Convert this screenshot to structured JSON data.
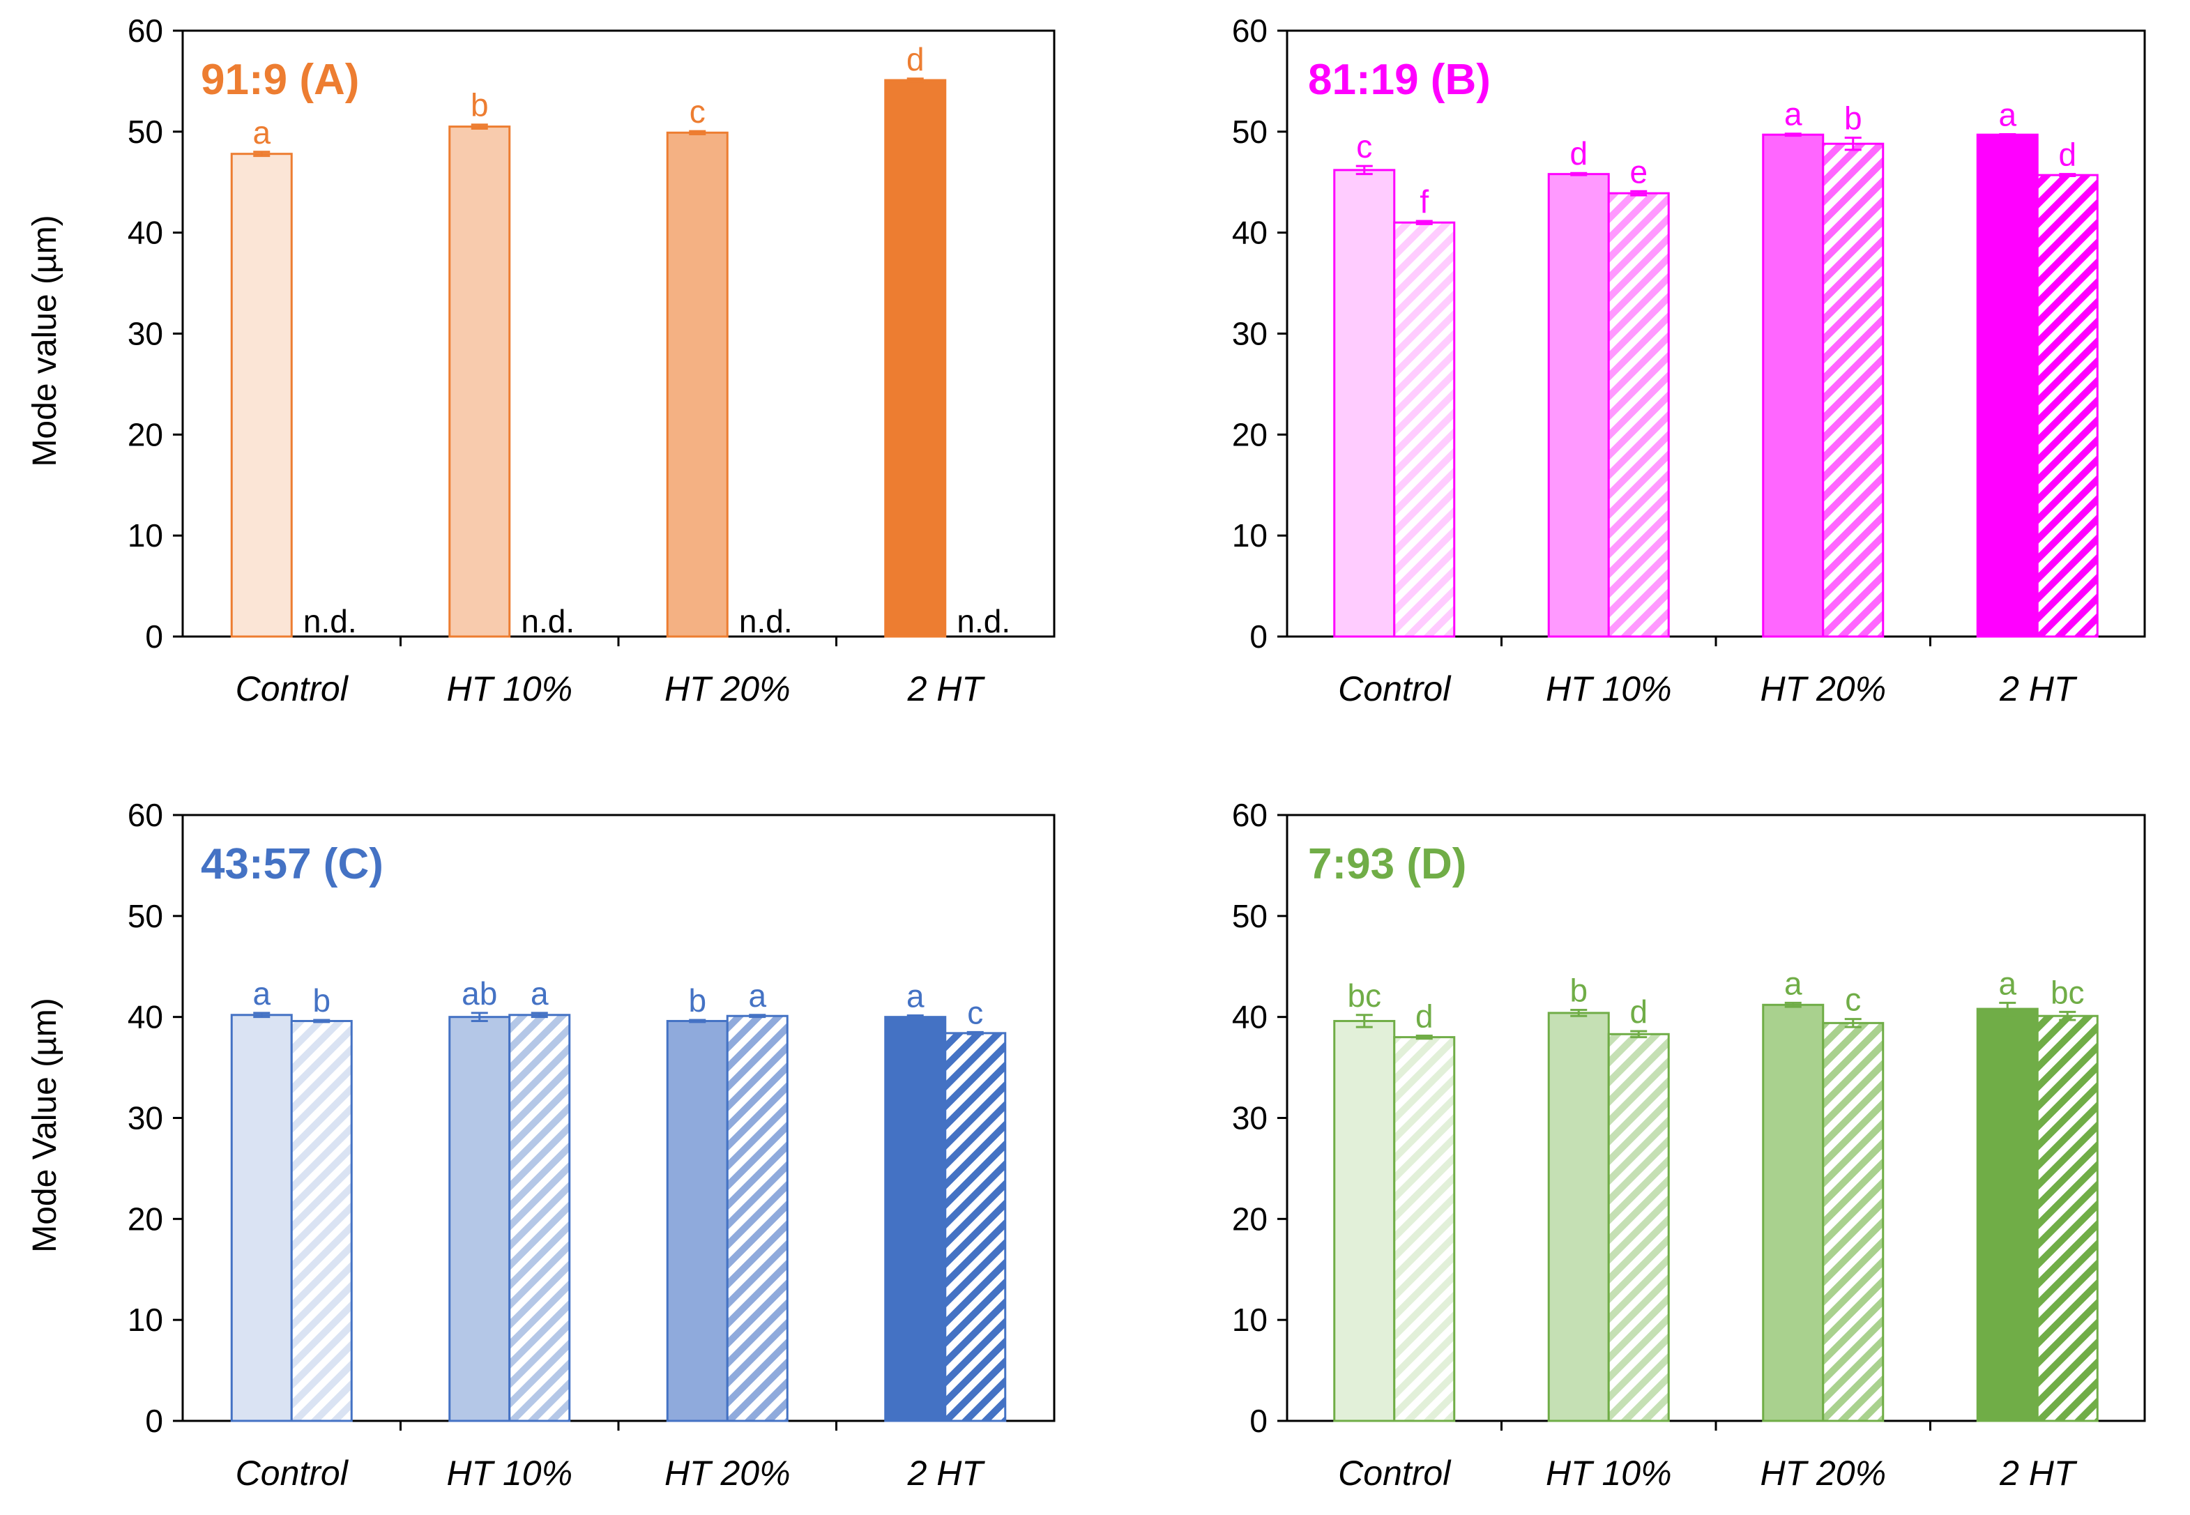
{
  "chart_data": [
    {
      "id": "A",
      "type": "bar",
      "title": "91:9 (A)",
      "color": "#ED7D31",
      "ylabel": "Mode value (µm)",
      "ylim": [
        0,
        60
      ],
      "yticks": [
        "0",
        "10",
        "20",
        "30",
        "40",
        "50",
        "60"
      ],
      "categories": [
        "Control",
        "HT 10%",
        "HT 20%",
        "2 HT"
      ],
      "category_fills": [
        "#FBE5D6",
        "#F8CBAD",
        "#F4B183",
        "#ED7D31"
      ],
      "series": [
        {
          "name": "solid",
          "pattern": "solid",
          "values": [
            47.8,
            50.5,
            49.9,
            55.1
          ],
          "errors": [
            0.2,
            0.2,
            0.15,
            0.15
          ],
          "labels": [
            "a",
            "b",
            "c",
            "d"
          ]
        },
        {
          "name": "hatched",
          "pattern": "hatched",
          "values": [
            null,
            null,
            null,
            null
          ],
          "errors": [
            null,
            null,
            null,
            null
          ],
          "labels": [
            "n.d.",
            "n.d.",
            "n.d.",
            "n.d."
          ]
        }
      ]
    },
    {
      "id": "B",
      "type": "bar",
      "title": "81:19 (B)",
      "color": "#FF00FF",
      "ylabel": "",
      "ylim": [
        0,
        60
      ],
      "yticks": [
        "0",
        "10",
        "20",
        "30",
        "40",
        "50",
        "60"
      ],
      "categories": [
        "Control",
        "HT 10%",
        "HT 20%",
        "2 HT"
      ],
      "category_fills": [
        "#FFCCFF",
        "#FF99FF",
        "#FF66FF",
        "#FF00FF"
      ],
      "series": [
        {
          "name": "solid",
          "pattern": "solid",
          "values": [
            46.2,
            45.8,
            49.7,
            49.7
          ],
          "errors": [
            0.4,
            0.1,
            0.1,
            0.05
          ],
          "labels": [
            "c",
            "d",
            "a",
            "a"
          ]
        },
        {
          "name": "hatched",
          "pattern": "hatched",
          "values": [
            41.0,
            43.9,
            48.8,
            45.7
          ],
          "errors": [
            0.15,
            0.2,
            0.6,
            0.1
          ],
          "labels": [
            "f",
            "e",
            "b",
            "d"
          ]
        }
      ]
    },
    {
      "id": "C",
      "type": "bar",
      "title": "43:57 (C)",
      "color": "#4472C4",
      "ylabel": "Mode Value (µm)",
      "ylim": [
        0,
        60
      ],
      "yticks": [
        "0",
        "10",
        "20",
        "30",
        "40",
        "50",
        "60"
      ],
      "categories": [
        "Control",
        "HT 10%",
        "HT 20%",
        "2 HT"
      ],
      "category_fills": [
        "#DAE3F3",
        "#B4C7E7",
        "#8FAADC",
        "#4472C4"
      ],
      "series": [
        {
          "name": "solid",
          "pattern": "solid",
          "values": [
            40.2,
            40.0,
            39.6,
            40.0
          ],
          "errors": [
            0.2,
            0.4,
            0.1,
            0.15
          ],
          "labels": [
            "a",
            "ab",
            "b",
            "a"
          ]
        },
        {
          "name": "hatched",
          "pattern": "hatched",
          "values": [
            39.6,
            40.2,
            40.1,
            38.4
          ],
          "errors": [
            0.1,
            0.2,
            0.1,
            0.1
          ],
          "labels": [
            "b",
            "a",
            "a",
            "c"
          ]
        }
      ]
    },
    {
      "id": "D",
      "type": "bar",
      "title": "7:93 (D)",
      "color": "#70AD47",
      "ylabel": "",
      "ylim": [
        0,
        60
      ],
      "yticks": [
        "0",
        "10",
        "20",
        "30",
        "40",
        "50",
        "60"
      ],
      "categories": [
        "Control",
        "HT 10%",
        "HT 20%",
        "2 HT"
      ],
      "category_fills": [
        "#E2F0D9",
        "#C5E0B4",
        "#A9D18E",
        "#70AD47"
      ],
      "series": [
        {
          "name": "solid",
          "pattern": "solid",
          "values": [
            39.6,
            40.4,
            41.2,
            40.8
          ],
          "errors": [
            0.6,
            0.3,
            0.2,
            0.6
          ],
          "labels": [
            "bc",
            "b",
            "a",
            "a"
          ]
        },
        {
          "name": "hatched",
          "pattern": "hatched",
          "values": [
            38.0,
            38.3,
            39.4,
            40.1
          ],
          "errors": [
            0.15,
            0.3,
            0.4,
            0.4
          ],
          "labels": [
            "d",
            "d",
            "c",
            "bc"
          ]
        }
      ]
    }
  ]
}
